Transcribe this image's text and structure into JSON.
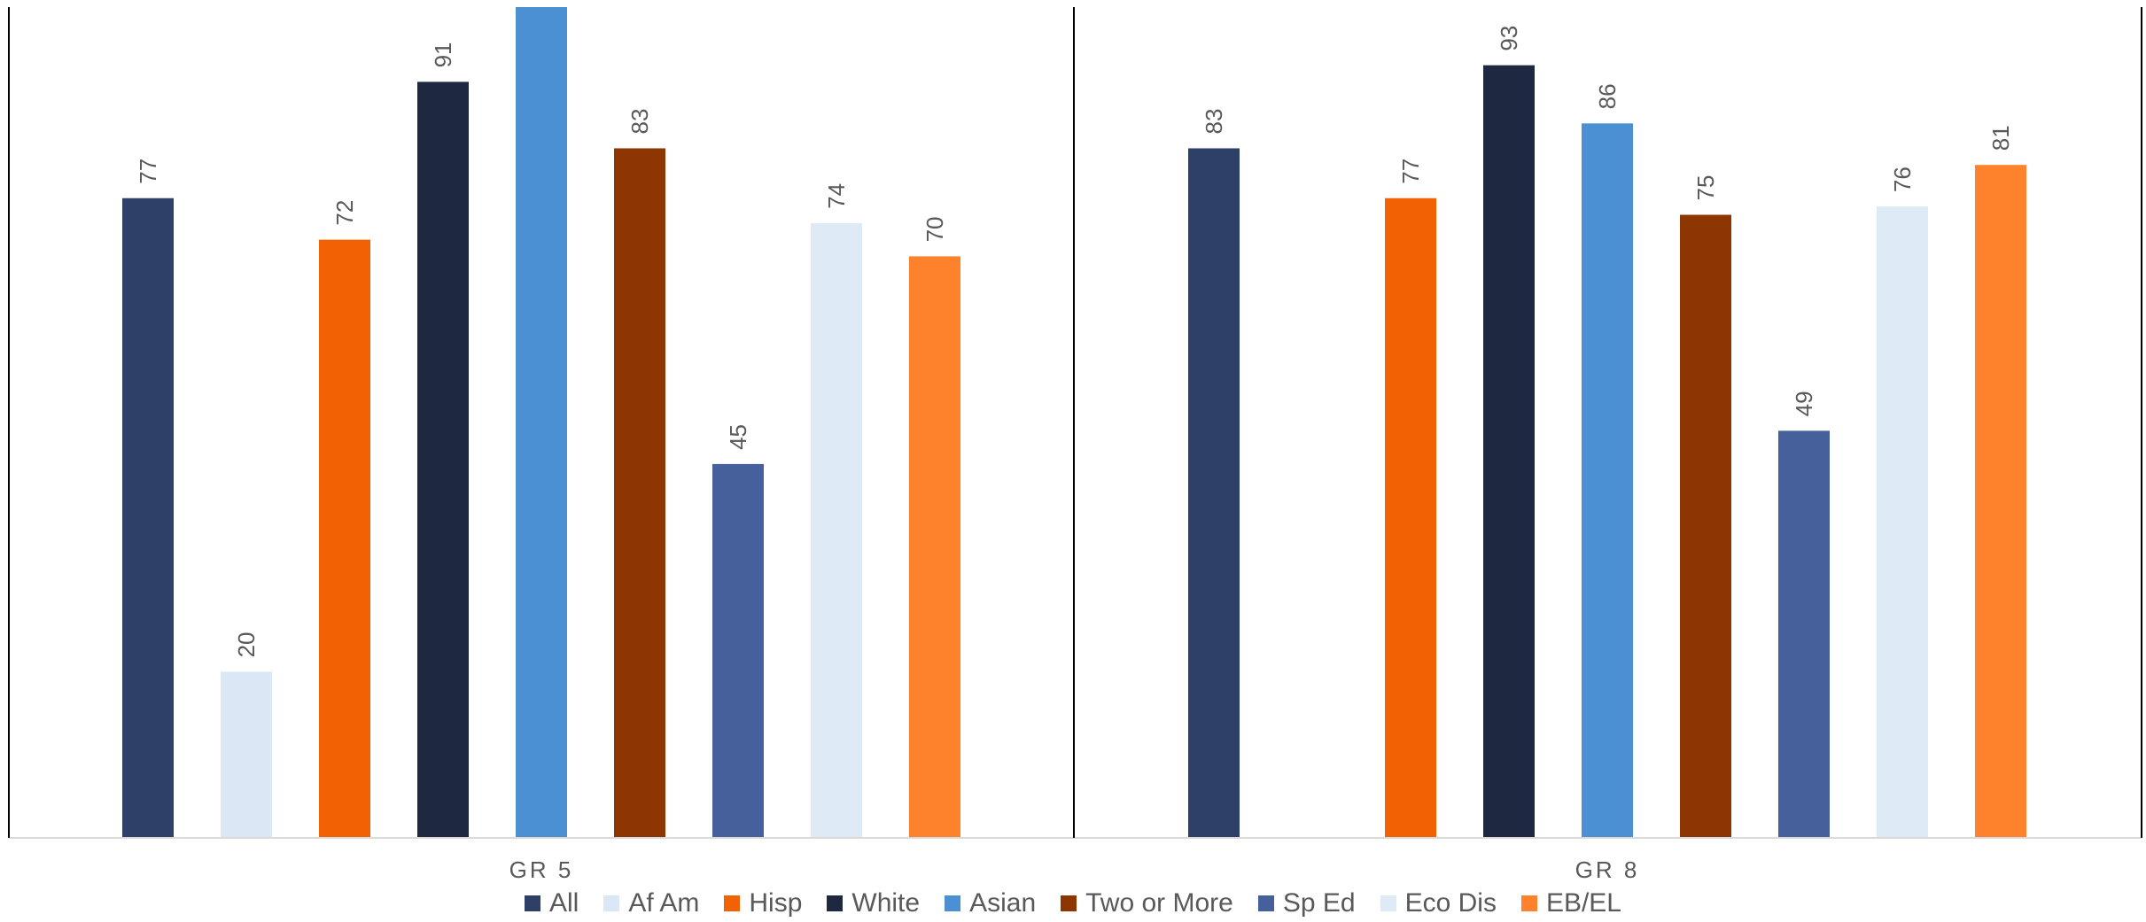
{
  "chart_data": {
    "type": "bar",
    "title": "",
    "xlabel": "",
    "ylabel": "",
    "ylim": [
      0,
      100
    ],
    "grid": false,
    "legend_position": "bottom",
    "categories": [
      "GR 5",
      "GR 8"
    ],
    "series": [
      {
        "name": "All",
        "color": "#2f4068",
        "values": [
          77,
          83
        ]
      },
      {
        "name": "Af Am",
        "color": "#dbe7f4",
        "values": [
          20,
          null
        ]
      },
      {
        "name": "Hisp",
        "color": "#f26205",
        "values": [
          72,
          77
        ]
      },
      {
        "name": "White",
        "color": "#1e2841",
        "values": [
          91,
          93
        ]
      },
      {
        "name": "Asian",
        "color": "#4a90d2",
        "values": [
          100,
          86
        ]
      },
      {
        "name": "Two or More",
        "color": "#8d3601",
        "values": [
          83,
          75
        ]
      },
      {
        "name": "Sp Ed",
        "color": "#45609a",
        "values": [
          45,
          49
        ]
      },
      {
        "name": "Eco Dis",
        "color": "#deebf7",
        "values": [
          74,
          76
        ]
      },
      {
        "name": "EB/EL",
        "color": "#fd822b",
        "values": [
          70,
          81
        ]
      }
    ],
    "data_labels": [
      [
        "77",
        "20",
        "72",
        "91",
        "",
        "83",
        "45",
        "74",
        "70"
      ],
      [
        "83",
        "",
        "77",
        "93",
        "86",
        "75",
        "49",
        "76",
        "81"
      ]
    ]
  }
}
